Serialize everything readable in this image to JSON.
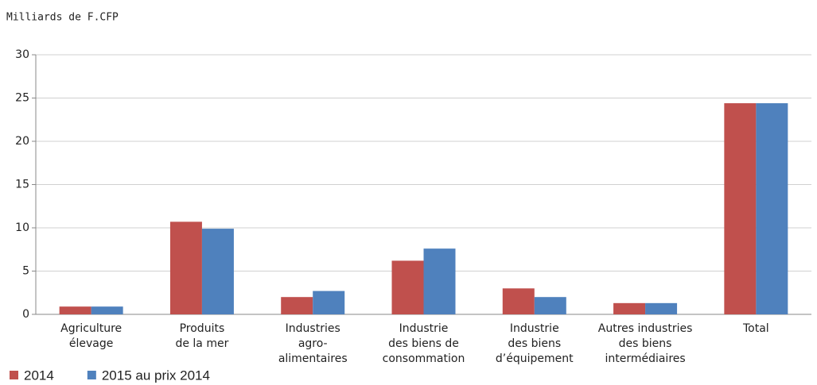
{
  "chart_data": {
    "type": "bar",
    "title": "Milliards de F.CFP",
    "categories": [
      [
        "Agriculture",
        "élevage"
      ],
      [
        "Produits",
        "de la mer"
      ],
      [
        "Industries",
        "agro-",
        "alimentaires"
      ],
      [
        "Industrie",
        "des biens de",
        "consommation"
      ],
      [
        "Industrie",
        "des biens",
        "d’équipement"
      ],
      [
        "Autres industries",
        "des biens",
        "intermédiaires"
      ],
      [
        "Total"
      ]
    ],
    "series": [
      {
        "name": "2014",
        "color": "#c0504d",
        "values": [
          0.9,
          10.7,
          2.0,
          6.2,
          3.0,
          1.3,
          24.4
        ]
      },
      {
        "name": "2015 au prix 2014",
        "color": "#4f81bd",
        "values": [
          0.9,
          9.9,
          2.7,
          7.6,
          2.0,
          1.3,
          24.4
        ]
      }
    ],
    "ylim": [
      0,
      30
    ],
    "yticks": [
      0,
      5,
      10,
      15,
      20,
      25,
      30
    ],
    "grid": true,
    "legend": "bottom-left"
  }
}
